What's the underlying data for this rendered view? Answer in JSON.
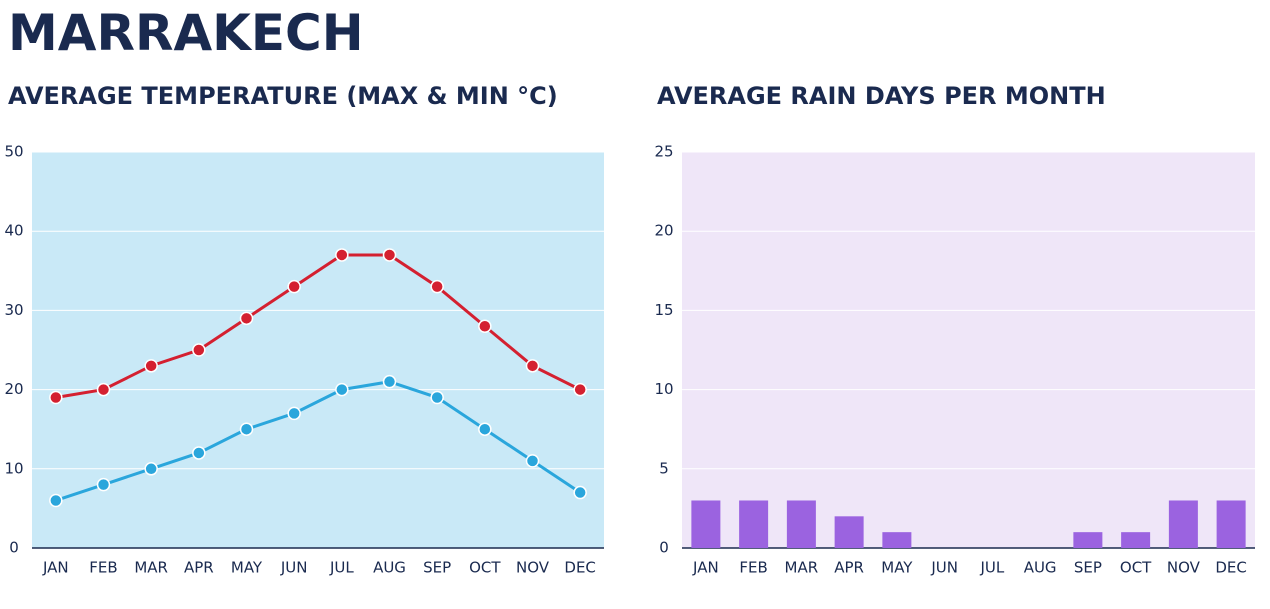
{
  "title": "MARRAKECH",
  "chart_data": [
    {
      "type": "line",
      "title": "AVERAGE TEMPERATURE (MAX & MIN °C)",
      "categories": [
        "JAN",
        "FEB",
        "MAR",
        "APR",
        "MAY",
        "JUN",
        "JUL",
        "AUG",
        "SEP",
        "OCT",
        "NOV",
        "DEC"
      ],
      "series": [
        {
          "color": "#d42030",
          "values": [
            19,
            20,
            23,
            25,
            29,
            33,
            37,
            37,
            33,
            28,
            23,
            20
          ]
        },
        {
          "color": "#2aa6dc",
          "values": [
            6,
            8,
            10,
            12,
            15,
            17,
            20,
            21,
            19,
            15,
            11,
            7
          ]
        }
      ],
      "ylim": [
        0,
        50
      ],
      "yticks": [
        0,
        10,
        20,
        30,
        40,
        50
      ],
      "grid": true,
      "background": "#c9e9f7"
    },
    {
      "type": "bar",
      "title": "AVERAGE RAIN DAYS PER MONTH",
      "categories": [
        "JAN",
        "FEB",
        "MAR",
        "APR",
        "MAY",
        "JUN",
        "JUL",
        "AUG",
        "SEP",
        "OCT",
        "NOV",
        "DEC"
      ],
      "values": [
        3,
        3,
        3,
        2,
        1,
        0,
        0,
        0,
        1,
        1,
        3,
        3
      ],
      "color": "#9b63e0",
      "ylim": [
        0,
        25
      ],
      "yticks": [
        0,
        5,
        10,
        15,
        20,
        25
      ],
      "grid": true,
      "background": "#efe6f8"
    }
  ]
}
